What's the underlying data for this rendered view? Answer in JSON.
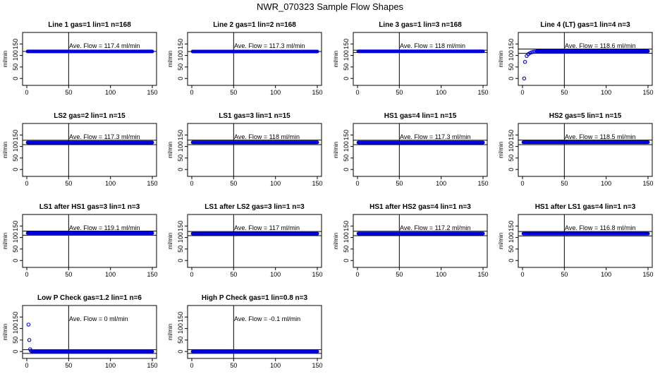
{
  "page": {
    "title": "NWR_070323  Sample Flow Shapes"
  },
  "chart_data": [
    {
      "type": "scatter",
      "title": "Line 1 gas=1 lin=1 n=168",
      "annotation": "Ave. Flow = 117.4  ml/min",
      "ylabel": "ml/min",
      "xlim": [
        0,
        150
      ],
      "ylim": [
        -30,
        200
      ],
      "xticks": [
        0,
        50,
        100,
        150
      ],
      "yticks": [
        0,
        50,
        100,
        150
      ],
      "vline": 50,
      "hlines": [
        117.4
      ],
      "points": [],
      "flat": {
        "x0": 1,
        "x1": 150,
        "y": 117.4
      }
    },
    {
      "type": "scatter",
      "title": "Line 2 gas=1 lin=2 n=168",
      "annotation": "Ave. Flow = 117.3  ml/min",
      "ylabel": "ml/min",
      "xlim": [
        0,
        150
      ],
      "ylim": [
        -30,
        200
      ],
      "xticks": [
        0,
        50,
        100,
        150
      ],
      "yticks": [
        0,
        50,
        100,
        150
      ],
      "vline": 50,
      "hlines": [
        117.3
      ],
      "points": [],
      "flat": {
        "x0": 1,
        "x1": 150,
        "y": 117.3
      }
    },
    {
      "type": "scatter",
      "title": "Line 3 gas=1 lin=3 n=168",
      "annotation": "Ave. Flow = 118  ml/min",
      "ylabel": "ml/min",
      "xlim": [
        0,
        150
      ],
      "ylim": [
        -30,
        200
      ],
      "xticks": [
        0,
        50,
        100,
        150
      ],
      "yticks": [
        0,
        50,
        100,
        150
      ],
      "vline": 50,
      "hlines": [
        113,
        123
      ],
      "points": [],
      "flat": {
        "x0": 1,
        "x1": 150,
        "y": 118
      }
    },
    {
      "type": "scatter",
      "title": "Line 4 (LT) gas=1 lin=4 n=3",
      "annotation": "Ave. Flow = 118.6  ml/min",
      "ylabel": "ml/min",
      "xlim": [
        0,
        150
      ],
      "ylim": [
        -30,
        200
      ],
      "xticks": [
        0,
        50,
        100,
        150
      ],
      "yticks": [
        0,
        50,
        100,
        150
      ],
      "vline": 50,
      "hlines": [
        109,
        128
      ],
      "points": [
        [
          2,
          0
        ],
        [
          3,
          72
        ],
        [
          5,
          98
        ],
        [
          7,
          106
        ],
        [
          9,
          111
        ],
        [
          11,
          114
        ],
        [
          13,
          116
        ],
        [
          15,
          117
        ]
      ],
      "flat": {
        "x0": 17,
        "x1": 150,
        "y": 118.6
      }
    },
    {
      "type": "scatter",
      "title": "LS2 gas=2 lin=1 n=15",
      "annotation": "Ave. Flow = 117.3  ml/min",
      "ylabel": "ml/min",
      "xlim": [
        0,
        150
      ],
      "ylim": [
        -30,
        200
      ],
      "xticks": [
        0,
        50,
        100,
        150
      ],
      "yticks": [
        0,
        50,
        100,
        150
      ],
      "vline": 50,
      "hlines": [
        108,
        127
      ],
      "points": [],
      "flat": {
        "x0": 1,
        "x1": 150,
        "y": 117.3
      }
    },
    {
      "type": "scatter",
      "title": "LS1 gas=3 lin=1 n=15",
      "annotation": "Ave. Flow = 118  ml/min",
      "ylabel": "ml/min",
      "xlim": [
        0,
        150
      ],
      "ylim": [
        -30,
        200
      ],
      "xticks": [
        0,
        50,
        100,
        150
      ],
      "yticks": [
        0,
        50,
        100,
        150
      ],
      "vline": 50,
      "hlines": [
        108,
        128
      ],
      "points": [],
      "flat": {
        "x0": 1,
        "x1": 150,
        "y": 118
      }
    },
    {
      "type": "scatter",
      "title": "HS1 gas=4 lin=1 n=15",
      "annotation": "Ave. Flow = 117.3  ml/min",
      "ylabel": "ml/min",
      "xlim": [
        0,
        150
      ],
      "ylim": [
        -30,
        200
      ],
      "xticks": [
        0,
        50,
        100,
        150
      ],
      "yticks": [
        0,
        50,
        100,
        150
      ],
      "vline": 50,
      "hlines": [
        108,
        127
      ],
      "points": [],
      "flat": {
        "x0": 1,
        "x1": 150,
        "y": 117.3
      }
    },
    {
      "type": "scatter",
      "title": "HS2 gas=5 lin=1 n=15",
      "annotation": "Ave. Flow = 118.5  ml/min",
      "ylabel": "ml/min",
      "xlim": [
        0,
        150
      ],
      "ylim": [
        -30,
        200
      ],
      "xticks": [
        0,
        50,
        100,
        150
      ],
      "yticks": [
        0,
        50,
        100,
        150
      ],
      "vline": 50,
      "hlines": [
        108,
        128
      ],
      "points": [],
      "flat": {
        "x0": 1,
        "x1": 150,
        "y": 118.5
      }
    },
    {
      "type": "scatter",
      "title": "LS1 after HS1 gas=3 lin=1 n=3",
      "annotation": "Ave. Flow = 119.1  ml/min",
      "ylabel": "ml/min",
      "xlim": [
        0,
        150
      ],
      "ylim": [
        -30,
        200
      ],
      "xticks": [
        0,
        50,
        100,
        150
      ],
      "yticks": [
        0,
        50,
        100,
        150
      ],
      "vline": 50,
      "hlines": [
        110,
        128
      ],
      "points": [],
      "flat": {
        "x0": 1,
        "x1": 150,
        "y": 119.1
      }
    },
    {
      "type": "scatter",
      "title": "LS1 after LS2 gas=3 lin=1 n=3",
      "annotation": "Ave. Flow = 117  ml/min",
      "ylabel": "ml/min",
      "xlim": [
        0,
        150
      ],
      "ylim": [
        -30,
        200
      ],
      "xticks": [
        0,
        50,
        100,
        150
      ],
      "yticks": [
        0,
        50,
        100,
        150
      ],
      "vline": 50,
      "hlines": [
        108,
        126
      ],
      "points": [],
      "flat": {
        "x0": 1,
        "x1": 150,
        "y": 117
      }
    },
    {
      "type": "scatter",
      "title": "HS1 after HS2 gas=4 lin=1 n=3",
      "annotation": "Ave. Flow = 117.2  ml/min",
      "ylabel": "ml/min",
      "xlim": [
        0,
        150
      ],
      "ylim": [
        -30,
        200
      ],
      "xticks": [
        0,
        50,
        100,
        150
      ],
      "yticks": [
        0,
        50,
        100,
        150
      ],
      "vline": 50,
      "hlines": [
        108,
        127
      ],
      "points": [],
      "flat": {
        "x0": 1,
        "x1": 150,
        "y": 117.2
      }
    },
    {
      "type": "scatter",
      "title": "HS1 after LS1 gas=4 lin=1 n=3",
      "annotation": "Ave. Flow = 116.8  ml/min",
      "ylabel": "ml/min",
      "xlim": [
        0,
        150
      ],
      "ylim": [
        -30,
        200
      ],
      "xticks": [
        0,
        50,
        100,
        150
      ],
      "yticks": [
        0,
        50,
        100,
        150
      ],
      "vline": 50,
      "hlines": [
        107,
        126
      ],
      "points": [],
      "flat": {
        "x0": 1,
        "x1": 150,
        "y": 116.8
      }
    },
    {
      "type": "scatter",
      "title": "Low P Check gas=1.2 lin=1 n=6",
      "annotation": "Ave. Flow = 0  ml/min",
      "ylabel": "ml/min",
      "xlim": [
        0,
        150
      ],
      "ylim": [
        -30,
        200
      ],
      "xticks": [
        0,
        50,
        100,
        150
      ],
      "yticks": [
        0,
        50,
        100,
        150
      ],
      "vline": 50,
      "hlines": [
        -8,
        8
      ],
      "points": [
        [
          2,
          117
        ],
        [
          3,
          50
        ],
        [
          4,
          10
        ],
        [
          5,
          3
        ],
        [
          6,
          1
        ]
      ],
      "flat": {
        "x0": 7,
        "x1": 150,
        "y": 0
      }
    },
    {
      "type": "scatter",
      "title": "High P Check gas=1 lin=0.8 n=3",
      "annotation": "Ave. Flow = -0.1  ml/min",
      "ylabel": "ml/min",
      "xlim": [
        0,
        150
      ],
      "ylim": [
        -30,
        200
      ],
      "xticks": [
        0,
        50,
        100,
        150
      ],
      "yticks": [
        0,
        50,
        100,
        150
      ],
      "vline": 50,
      "hlines": [
        -8,
        8
      ],
      "points": [],
      "flat": {
        "x0": 1,
        "x1": 150,
        "y": -0.1
      }
    }
  ],
  "colors": {
    "points": "#0000dd",
    "axes": "#000000"
  }
}
